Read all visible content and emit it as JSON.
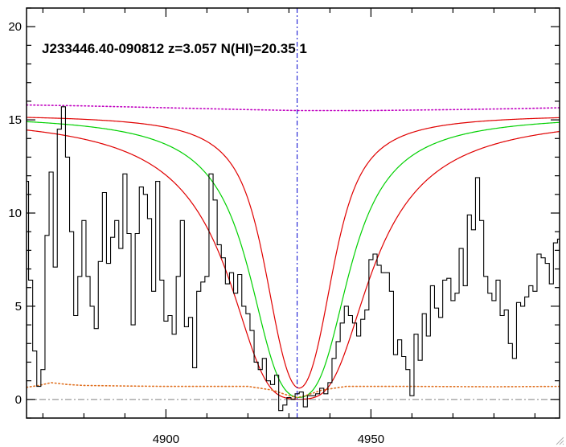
{
  "chart_data": {
    "type": "line",
    "title": "J233446.40-090812 z=3.057 N(HI)=20.35 1",
    "xlabel": "",
    "ylabel": "",
    "xlim": [
      4866,
      4996
    ],
    "ylim": [
      -1,
      21
    ],
    "x_ticks": [
      4900,
      4950
    ],
    "y_ticks": [
      0,
      5,
      10,
      15,
      20
    ],
    "grid": false,
    "line_center_x": 4932,
    "zero_level": 0,
    "series": [
      {
        "role": "flux",
        "style": "histogram",
        "color": "#000000",
        "points": [
          [
            4866,
            11.7
          ],
          [
            4867,
            6.4
          ],
          [
            4868,
            2.6
          ],
          [
            4869,
            0.7
          ],
          [
            4870,
            1.6
          ],
          [
            4871,
            8.8
          ],
          [
            4872,
            12.2
          ],
          [
            4873,
            7.1
          ],
          [
            4874,
            14.5
          ],
          [
            4875,
            15.7
          ],
          [
            4876,
            13.0
          ],
          [
            4877,
            9.0
          ],
          [
            4878,
            4.5
          ],
          [
            4879,
            6.6
          ],
          [
            4880,
            9.6
          ],
          [
            4881,
            6.6
          ],
          [
            4882,
            5.0
          ],
          [
            4883,
            3.8
          ],
          [
            4884,
            7.4
          ],
          [
            4885,
            11.1
          ],
          [
            4886,
            7.3
          ],
          [
            4887,
            8.7
          ],
          [
            4888,
            9.6
          ],
          [
            4889,
            8.1
          ],
          [
            4890,
            12.1
          ],
          [
            4891,
            8.9
          ],
          [
            4892,
            4.0
          ],
          [
            4893,
            8.9
          ],
          [
            4894,
            11.4
          ],
          [
            4895,
            11.0
          ],
          [
            4896,
            9.7
          ],
          [
            4897,
            5.8
          ],
          [
            4898,
            11.7
          ],
          [
            4899,
            6.4
          ],
          [
            4900,
            4.2
          ],
          [
            4901,
            4.5
          ],
          [
            4902,
            3.5
          ],
          [
            4903,
            6.6
          ],
          [
            4904,
            9.6
          ],
          [
            4905,
            3.9
          ],
          [
            4906,
            4.4
          ],
          [
            4907,
            1.7
          ],
          [
            4908,
            5.8
          ],
          [
            4909,
            6.3
          ],
          [
            4910,
            6.6
          ],
          [
            4911,
            12.1
          ],
          [
            4912,
            10.7
          ],
          [
            4913,
            8.3
          ],
          [
            4914,
            7.6
          ],
          [
            4915,
            6.2
          ],
          [
            4916,
            6.8
          ],
          [
            4917,
            5.7
          ],
          [
            4918,
            6.7
          ],
          [
            4919,
            5.0
          ],
          [
            4920,
            4.6
          ],
          [
            4921,
            3.7
          ],
          [
            4922,
            2.0
          ],
          [
            4923,
            1.6
          ],
          [
            4924,
            2.2
          ],
          [
            4925,
            1.0
          ],
          [
            4926,
            0.8
          ],
          [
            4927,
            1.3
          ],
          [
            4928,
            -0.6
          ],
          [
            4929,
            -0.3
          ],
          [
            4930,
            0.1
          ],
          [
            4931,
            0.0
          ],
          [
            4932,
            0.3
          ],
          [
            4933,
            0.4
          ],
          [
            4934,
            -0.4
          ],
          [
            4935,
            0.2
          ],
          [
            4936,
            0.2
          ],
          [
            4937,
            0.3
          ],
          [
            4938,
            0.6
          ],
          [
            4939,
            0.3
          ],
          [
            4940,
            0.9
          ],
          [
            4941,
            2.2
          ],
          [
            4942,
            3.1
          ],
          [
            4943,
            4.1
          ],
          [
            4944,
            5.0
          ],
          [
            4945,
            4.5
          ],
          [
            4946,
            4.1
          ],
          [
            4947,
            3.4
          ],
          [
            4948,
            4.3
          ],
          [
            4949,
            4.8
          ],
          [
            4950,
            7.5
          ],
          [
            4951,
            7.8
          ],
          [
            4952,
            7.2
          ],
          [
            4953,
            6.8
          ],
          [
            4954,
            6.8
          ],
          [
            4955,
            5.8
          ],
          [
            4956,
            2.4
          ],
          [
            4957,
            3.2
          ],
          [
            4958,
            2.3
          ],
          [
            4959,
            1.6
          ],
          [
            4960,
            0.2
          ],
          [
            4961,
            3.5
          ],
          [
            4962,
            2.1
          ],
          [
            4963,
            4.6
          ],
          [
            4964,
            3.4
          ],
          [
            4965,
            6.1
          ],
          [
            4966,
            4.9
          ],
          [
            4967,
            4.4
          ],
          [
            4968,
            6.4
          ],
          [
            4969,
            6.5
          ],
          [
            4970,
            5.3
          ],
          [
            4971,
            5.7
          ],
          [
            4972,
            8.1
          ],
          [
            4973,
            6.1
          ],
          [
            4974,
            9.9
          ],
          [
            4975,
            9.1
          ],
          [
            4976,
            11.9
          ],
          [
            4977,
            9.6
          ],
          [
            4978,
            6.6
          ],
          [
            4979,
            5.7
          ],
          [
            4980,
            5.3
          ],
          [
            4981,
            6.4
          ],
          [
            4982,
            4.5
          ],
          [
            4983,
            4.8
          ],
          [
            4984,
            3.0
          ],
          [
            4985,
            2.2
          ],
          [
            4986,
            5.2
          ],
          [
            4987,
            5.0
          ],
          [
            4988,
            5.5
          ],
          [
            4989,
            6.1
          ],
          [
            4990,
            5.8
          ],
          [
            4991,
            7.8
          ],
          [
            4992,
            7.6
          ],
          [
            4993,
            7.3
          ],
          [
            4994,
            6.2
          ],
          [
            4995,
            8.4
          ],
          [
            4996,
            8.6
          ]
        ]
      },
      {
        "role": "continuum",
        "style": "dotted",
        "color": "#c000c0",
        "points": [
          [
            4866,
            15.8
          ],
          [
            4880,
            15.75
          ],
          [
            4900,
            15.65
          ],
          [
            4920,
            15.55
          ],
          [
            4932,
            15.5
          ],
          [
            4950,
            15.5
          ],
          [
            4970,
            15.55
          ],
          [
            4985,
            15.6
          ],
          [
            4996,
            15.65
          ]
        ]
      },
      {
        "role": "error",
        "style": "dotted",
        "color": "#e07020",
        "points": [
          [
            4866,
            0.65
          ],
          [
            4869,
            0.75
          ],
          [
            4872,
            0.9
          ],
          [
            4876,
            0.8
          ],
          [
            4880,
            0.75
          ],
          [
            4890,
            0.72
          ],
          [
            4900,
            0.7
          ],
          [
            4920,
            0.7
          ],
          [
            4926,
            0.5
          ],
          [
            4930,
            0.2
          ],
          [
            4932,
            0.1
          ],
          [
            4934,
            0.2
          ],
          [
            4938,
            0.5
          ],
          [
            4944,
            0.7
          ],
          [
            4960,
            0.7
          ],
          [
            4980,
            0.68
          ],
          [
            4996,
            0.7
          ]
        ]
      },
      {
        "role": "voigt_fit",
        "style": "solid",
        "color": "#00d000",
        "center": 4932.5,
        "continuum": 15.3,
        "lorentz_width": 1.7,
        "gauss_width": 3.0
      },
      {
        "role": "voigt_fit_lower",
        "style": "solid",
        "color": "#e00000",
        "center": 4932.5,
        "continuum": 15.3,
        "lorentz_width": 2.5,
        "gauss_width": 3.0
      },
      {
        "role": "voigt_fit_upper",
        "style": "solid",
        "color": "#e00000",
        "center": 4932.5,
        "continuum": 15.3,
        "lorentz_width": 1.1,
        "gauss_width": 3.0
      }
    ],
    "markers": {
      "center_line_color": "#0000d0",
      "zero_line_color": "#808080"
    }
  }
}
